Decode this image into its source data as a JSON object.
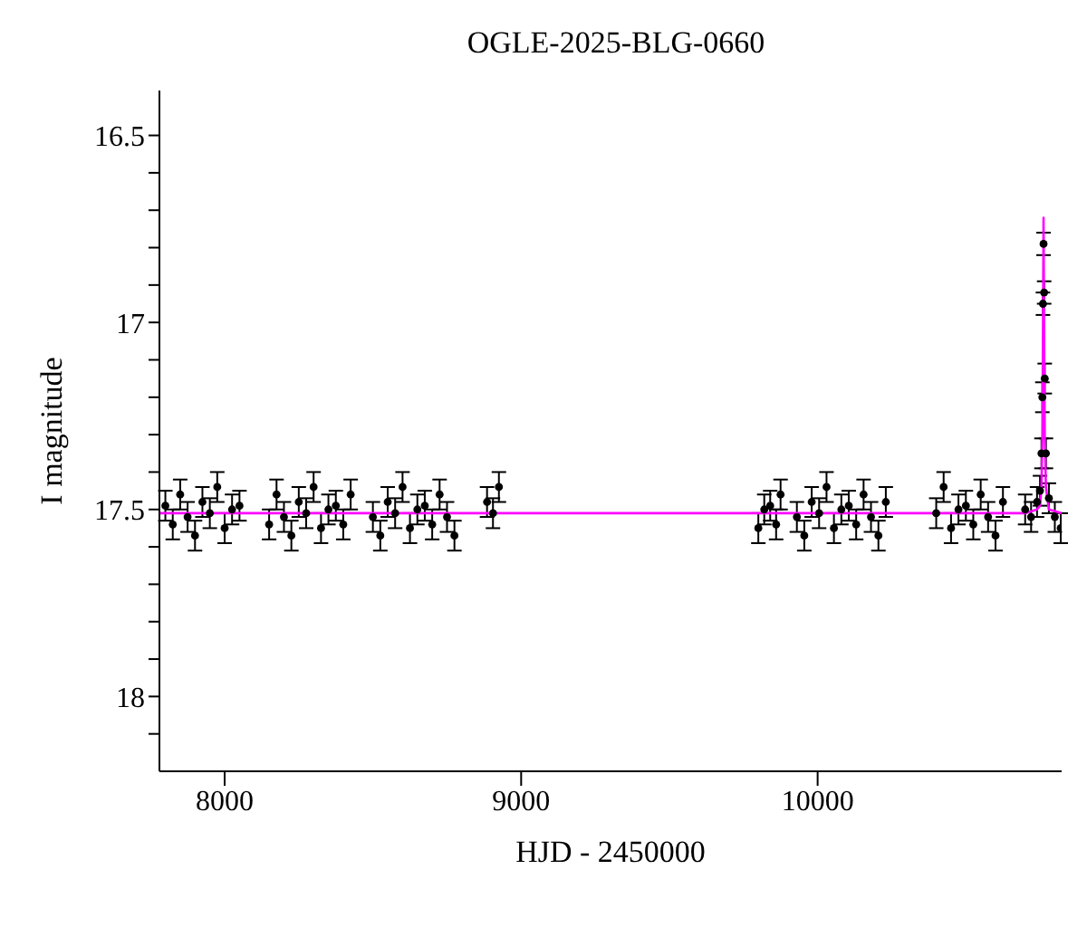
{
  "chart_data": {
    "type": "scatter",
    "title": "OGLE-2025-BLG-0660",
    "xlabel": "HJD - 2450000",
    "ylabel": "I magnitude",
    "xlim": [
      7780,
      10823
    ],
    "xticks": [
      8000,
      9000,
      10000
    ],
    "ylim": [
      18.2,
      16.38
    ],
    "yticks": [
      16.5,
      {
        "value": 16.6,
        "label": null
      },
      {
        "value": 16.7,
        "label": null
      },
      {
        "value": 16.8,
        "label": null
      },
      {
        "value": 16.9,
        "label": null
      },
      17,
      {
        "value": 17.1,
        "label": null
      },
      {
        "value": 17.2,
        "label": null
      },
      {
        "value": 17.3,
        "label": null
      },
      {
        "value": 17.4,
        "label": null
      },
      17.5,
      {
        "value": 17.6,
        "label": null
      },
      {
        "value": 17.7,
        "label": null
      },
      {
        "value": 17.8,
        "label": null
      },
      {
        "value": 17.9,
        "label": null
      },
      18,
      {
        "value": 18.1,
        "label": null
      }
    ],
    "grid": false,
    "legend": false,
    "series": [
      {
        "color": "#000000",
        "marker": "circle",
        "x": [
          7800,
          7825,
          7850,
          7875,
          7900,
          7925,
          7950,
          7975,
          8000,
          8025,
          8050,
          8150,
          8175,
          8200,
          8225,
          8250,
          8275,
          8300,
          8325,
          8350,
          8375,
          8400,
          8425,
          8500,
          8525,
          8550,
          8575,
          8600,
          8625,
          8650,
          8675,
          8700,
          8725,
          8750,
          8775,
          8885,
          8905,
          8925,
          9800,
          9820,
          9840,
          9860,
          9875,
          9930,
          9955,
          9980,
          10005,
          10030,
          10055,
          10080,
          10105,
          10130,
          10155,
          10180,
          10205,
          10230,
          10400,
          10425,
          10450,
          10475,
          10500,
          10525,
          10550,
          10575,
          10600,
          10625,
          10700,
          10720,
          10740,
          10750,
          10755,
          10758,
          10760,
          10762,
          10764,
          10766,
          10770,
          10780,
          10800,
          10820
        ],
        "values": [
          17.49,
          17.54,
          17.46,
          17.52,
          17.57,
          17.48,
          17.51,
          17.44,
          17.55,
          17.5,
          17.49,
          17.54,
          17.46,
          17.52,
          17.57,
          17.48,
          17.51,
          17.44,
          17.55,
          17.5,
          17.49,
          17.54,
          17.46,
          17.52,
          17.57,
          17.48,
          17.51,
          17.44,
          17.55,
          17.5,
          17.49,
          17.54,
          17.46,
          17.52,
          17.57,
          17.48,
          17.51,
          17.44,
          17.55,
          17.5,
          17.49,
          17.54,
          17.46,
          17.52,
          17.57,
          17.48,
          17.51,
          17.44,
          17.55,
          17.5,
          17.49,
          17.54,
          17.46,
          17.52,
          17.57,
          17.48,
          17.51,
          17.44,
          17.55,
          17.5,
          17.49,
          17.54,
          17.46,
          17.52,
          17.57,
          17.48,
          17.5,
          17.52,
          17.48,
          17.45,
          17.35,
          17.2,
          16.95,
          16.79,
          16.92,
          17.15,
          17.35,
          17.47,
          17.52,
          17.55
        ],
        "errors": [
          0.04,
          0.04,
          0.04,
          0.04,
          0.04,
          0.04,
          0.04,
          0.04,
          0.04,
          0.04,
          0.04,
          0.04,
          0.04,
          0.04,
          0.04,
          0.04,
          0.04,
          0.04,
          0.04,
          0.04,
          0.04,
          0.04,
          0.04,
          0.04,
          0.04,
          0.04,
          0.04,
          0.04,
          0.04,
          0.04,
          0.04,
          0.04,
          0.04,
          0.04,
          0.04,
          0.04,
          0.04,
          0.04,
          0.04,
          0.04,
          0.04,
          0.04,
          0.04,
          0.04,
          0.04,
          0.04,
          0.04,
          0.04,
          0.04,
          0.04,
          0.04,
          0.04,
          0.04,
          0.04,
          0.04,
          0.04,
          0.04,
          0.04,
          0.04,
          0.04,
          0.04,
          0.04,
          0.04,
          0.04,
          0.04,
          0.04,
          0.04,
          0.04,
          0.04,
          0.04,
          0.04,
          0.04,
          0.03,
          0.03,
          0.03,
          0.04,
          0.04,
          0.04,
          0.04,
          0.04
        ]
      },
      {
        "type": "line",
        "color": "#ff00ff",
        "marker": "none",
        "x": [
          7780,
          10700,
          10740,
          10750,
          10755,
          10758,
          10760,
          10762,
          10764,
          10766,
          10770,
          10780,
          10823
        ],
        "values": [
          17.51,
          17.51,
          17.5,
          17.49,
          17.44,
          17.3,
          17.05,
          16.72,
          17.05,
          17.3,
          17.44,
          17.5,
          17.51
        ]
      }
    ]
  }
}
